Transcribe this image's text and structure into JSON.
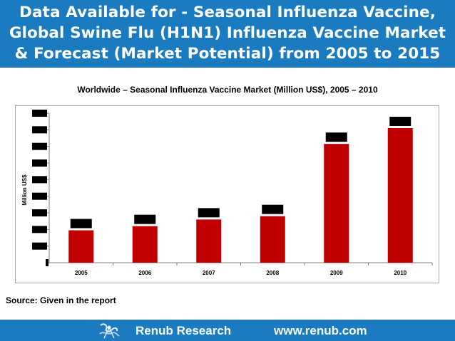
{
  "header": {
    "title": "Data Available for - Seasonal Influenza Vaccine, Global Swine Flu (H1N1) Influenza Vaccine Market & Forecast (Market Potential) from 2005 to 2015"
  },
  "source": "Source: Given in the report",
  "footer": {
    "brand": "Renub Research",
    "url": "www.renub.com"
  },
  "colors": {
    "header_bg": "#1a7bc1",
    "bar": "#c00000",
    "redaction": "#000000"
  },
  "icons": {
    "logo": "renub-logo-icon"
  },
  "chart_data": {
    "type": "bar",
    "title": "Worldwide – Seasonal Influenza Vaccine Market (Million US$), 2005 – 2010",
    "ylabel": "Million US$",
    "xlabel": "",
    "categories": [
      "2005",
      "2006",
      "2007",
      "2008",
      "2009",
      "2010"
    ],
    "values": [
      1.95,
      2.2,
      2.6,
      2.8,
      7.15,
      8.1
    ],
    "ylim": [
      0,
      9
    ],
    "yticks": [
      0,
      1,
      2,
      3,
      4,
      5,
      6,
      7,
      8,
      9
    ],
    "data_labels_redacted": true,
    "tick_labels_redacted": true,
    "grid": false,
    "legend": "none"
  }
}
